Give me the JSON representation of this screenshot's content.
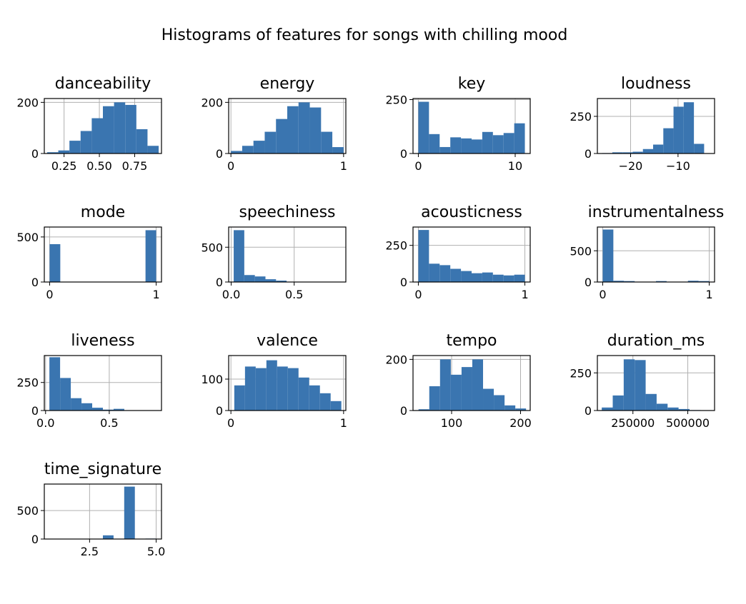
{
  "figure": {
    "title": "Histograms of features for songs with chilling mood",
    "bar_color": "#3a75b0",
    "grid_color": "#b0b0b0"
  },
  "chart_data": [
    {
      "type": "bar",
      "title": "danceability",
      "xlim": [
        0.11,
        0.94
      ],
      "ylim": [
        0,
        215
      ],
      "bin_edges": [
        0.13,
        0.209,
        0.288,
        0.367,
        0.446,
        0.525,
        0.604,
        0.683,
        0.762,
        0.841,
        0.92
      ],
      "counts": [
        5,
        12,
        50,
        88,
        138,
        185,
        200,
        190,
        95,
        30
      ],
      "xticks": [
        {
          "value": 0.25,
          "label": "0.25"
        },
        {
          "value": 0.5,
          "label": "0.50"
        },
        {
          "value": 0.75,
          "label": "0.75"
        }
      ],
      "yticks": [
        {
          "value": 0,
          "label": "0"
        },
        {
          "value": 200,
          "label": "200"
        }
      ],
      "grid": true
    },
    {
      "type": "bar",
      "title": "energy",
      "xlim": [
        -0.02,
        1.02
      ],
      "ylim": [
        0,
        215
      ],
      "bin_edges": [
        0.0,
        0.1,
        0.2,
        0.3,
        0.4,
        0.5,
        0.6,
        0.7,
        0.8,
        0.9,
        1.0
      ],
      "counts": [
        10,
        30,
        50,
        85,
        135,
        185,
        200,
        180,
        85,
        25
      ],
      "xticks": [
        {
          "value": 0,
          "label": "0"
        },
        {
          "value": 1,
          "label": "1"
        }
      ],
      "yticks": [
        {
          "value": 0,
          "label": "0"
        },
        {
          "value": 200,
          "label": "200"
        }
      ],
      "grid": true
    },
    {
      "type": "bar",
      "title": "key",
      "xlim": [
        -0.55,
        11.55
      ],
      "ylim": [
        0,
        255
      ],
      "bin_edges": [
        0,
        1.1,
        2.2,
        3.3,
        4.4,
        5.5,
        6.6,
        7.7,
        8.8,
        9.9,
        11
      ],
      "counts": [
        240,
        90,
        30,
        75,
        70,
        65,
        100,
        85,
        95,
        140
      ],
      "xticks": [
        {
          "value": 0,
          "label": "0"
        },
        {
          "value": 10,
          "label": "10"
        }
      ],
      "yticks": [
        {
          "value": 0,
          "label": "0"
        },
        {
          "value": 250,
          "label": "250"
        }
      ],
      "grid": true
    },
    {
      "type": "bar",
      "title": "loudness",
      "xlim": [
        -27,
        -2.3
      ],
      "ylim": [
        0,
        370
      ],
      "bin_edges": [
        -26,
        -23.85,
        -21.7,
        -19.55,
        -17.4,
        -15.25,
        -13.1,
        -10.95,
        -8.8,
        -6.65,
        -4.5
      ],
      "counts": [
        3,
        8,
        8,
        12,
        30,
        60,
        170,
        315,
        345,
        65
      ],
      "xticks": [
        {
          "value": -20,
          "label": "−20"
        },
        {
          "value": -10,
          "label": "−10"
        }
      ],
      "yticks": [
        {
          "value": 0,
          "label": "0"
        },
        {
          "value": 250,
          "label": "250"
        }
      ],
      "grid": true
    },
    {
      "type": "bar",
      "title": "mode",
      "xlim": [
        -0.05,
        1.05
      ],
      "ylim": [
        0,
        610
      ],
      "bin_edges": [
        0,
        0.1,
        0.2,
        0.3,
        0.4,
        0.5,
        0.6,
        0.7,
        0.8,
        0.9,
        1.0
      ],
      "counts": [
        420,
        0,
        0,
        0,
        0,
        0,
        0,
        0,
        0,
        575
      ],
      "xticks": [
        {
          "value": 0,
          "label": "0"
        },
        {
          "value": 1,
          "label": "1"
        }
      ],
      "yticks": [
        {
          "value": 0,
          "label": "0"
        },
        {
          "value": 500,
          "label": "500"
        }
      ],
      "grid": true
    },
    {
      "type": "bar",
      "title": "speechiness",
      "xlim": [
        -0.02,
        0.91
      ],
      "ylim": [
        0,
        790
      ],
      "bin_edges": [
        0.02,
        0.104,
        0.188,
        0.272,
        0.356,
        0.44,
        0.524,
        0.608,
        0.692,
        0.776,
        0.86
      ],
      "counts": [
        745,
        100,
        80,
        40,
        20,
        5,
        3,
        2,
        2,
        1
      ],
      "xticks": [
        {
          "value": 0,
          "label": "0.0"
        },
        {
          "value": 0.5,
          "label": "0.5"
        }
      ],
      "yticks": [
        {
          "value": 0,
          "label": "0"
        },
        {
          "value": 500,
          "label": "500"
        }
      ],
      "grid": true
    },
    {
      "type": "bar",
      "title": "acousticness",
      "xlim": [
        -0.05,
        1.05
      ],
      "ylim": [
        0,
        375
      ],
      "bin_edges": [
        0,
        0.1,
        0.2,
        0.3,
        0.4,
        0.5,
        0.6,
        0.7,
        0.8,
        0.9,
        1.0
      ],
      "counts": [
        355,
        125,
        115,
        90,
        75,
        60,
        65,
        50,
        45,
        50
      ],
      "xticks": [
        {
          "value": 0,
          "label": "0"
        },
        {
          "value": 1,
          "label": "1"
        }
      ],
      "yticks": [
        {
          "value": 0,
          "label": "0"
        },
        {
          "value": 250,
          "label": "250"
        }
      ],
      "grid": true
    },
    {
      "type": "bar",
      "title": "instrumentalness",
      "xlim": [
        -0.05,
        1.05
      ],
      "ylim": [
        0,
        880
      ],
      "bin_edges": [
        0,
        0.1,
        0.2,
        0.3,
        0.4,
        0.5,
        0.6,
        0.7,
        0.8,
        0.9,
        1.0
      ],
      "counts": [
        840,
        20,
        15,
        5,
        5,
        15,
        5,
        5,
        20,
        15
      ],
      "xticks": [
        {
          "value": 0,
          "label": "0"
        },
        {
          "value": 1,
          "label": "1"
        }
      ],
      "yticks": [
        {
          "value": 0,
          "label": "0"
        },
        {
          "value": 500,
          "label": "500"
        }
      ],
      "grid": true
    },
    {
      "type": "bar",
      "title": "liveness",
      "xlim": [
        -0.01,
        0.91
      ],
      "ylim": [
        0,
        490
      ],
      "bin_edges": [
        0.03,
        0.114,
        0.198,
        0.282,
        0.366,
        0.45,
        0.534,
        0.618,
        0.702,
        0.786,
        0.87
      ],
      "counts": [
        475,
        290,
        110,
        65,
        25,
        8,
        15,
        3,
        2,
        2
      ],
      "xticks": [
        {
          "value": 0,
          "label": "0.0"
        },
        {
          "value": 0.5,
          "label": "0.5"
        }
      ],
      "yticks": [
        {
          "value": 0,
          "label": "0"
        },
        {
          "value": 250,
          "label": "250"
        }
      ],
      "grid": true
    },
    {
      "type": "bar",
      "title": "valence",
      "xlim": [
        -0.02,
        1.02
      ],
      "ylim": [
        0,
        175
      ],
      "bin_edges": [
        0.03,
        0.125,
        0.22,
        0.315,
        0.41,
        0.505,
        0.6,
        0.695,
        0.79,
        0.885,
        0.98
      ],
      "counts": [
        80,
        140,
        135,
        160,
        140,
        135,
        105,
        80,
        55,
        30
      ],
      "xticks": [
        {
          "value": 0,
          "label": "0"
        },
        {
          "value": 1,
          "label": "1"
        }
      ],
      "yticks": [
        {
          "value": 0,
          "label": "0"
        },
        {
          "value": 100,
          "label": "100"
        }
      ],
      "grid": true
    },
    {
      "type": "bar",
      "title": "tempo",
      "xlim": [
        44,
        214
      ],
      "ylim": [
        0,
        215
      ],
      "bin_edges": [
        52,
        67.6,
        83.2,
        98.8,
        114.4,
        130,
        145.6,
        161.2,
        176.8,
        192.4,
        208
      ],
      "counts": [
        5,
        95,
        200,
        140,
        170,
        200,
        85,
        60,
        20,
        8
      ],
      "xticks": [
        {
          "value": 100,
          "label": "100"
        },
        {
          "value": 200,
          "label": "200"
        }
      ],
      "yticks": [
        {
          "value": 0,
          "label": "0"
        },
        {
          "value": 200,
          "label": "200"
        }
      ],
      "grid": true
    },
    {
      "type": "bar",
      "title": "duration_ms",
      "xlim": [
        88000,
        622000
      ],
      "ylim": [
        0,
        365
      ],
      "bin_edges": [
        108000,
        158000,
        208000,
        258000,
        308000,
        358000,
        408000,
        458000,
        508000,
        558000,
        608000
      ],
      "counts": [
        20,
        100,
        340,
        335,
        110,
        45,
        20,
        10,
        3,
        2
      ],
      "xticks": [
        {
          "value": 250000,
          "label": "250000"
        },
        {
          "value": 500000,
          "label": "500000"
        }
      ],
      "yticks": [
        {
          "value": 0,
          "label": "0"
        },
        {
          "value": 250,
          "label": "250"
        }
      ],
      "grid": true
    },
    {
      "type": "bar",
      "title": "time_signature",
      "xlim": [
        0.8,
        5.2
      ],
      "ylim": [
        0,
        965
      ],
      "bin_edges": [
        1.0,
        1.4,
        1.8,
        2.2,
        2.6,
        3.0,
        3.4,
        3.8,
        4.2,
        4.6,
        5.0
      ],
      "counts": [
        1,
        0,
        0,
        0,
        0,
        65,
        0,
        920,
        0,
        8
      ],
      "xticks": [
        {
          "value": 2.5,
          "label": "2.5"
        },
        {
          "value": 5,
          "label": "5.0"
        }
      ],
      "yticks": [
        {
          "value": 0,
          "label": "0"
        },
        {
          "value": 500,
          "label": "500"
        }
      ],
      "grid": true
    }
  ]
}
